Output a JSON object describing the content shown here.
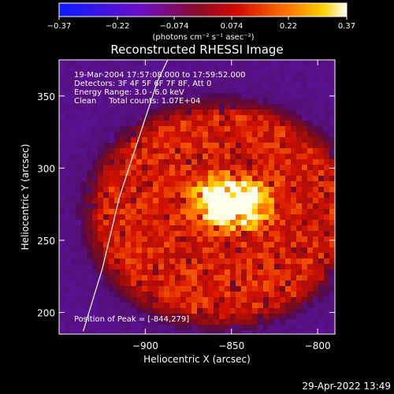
{
  "chart_data": {
    "type": "heatmap",
    "title": "Reconstructed RHESSI Image",
    "xlabel": "Heliocentric X (arcsec)",
    "ylabel": "Heliocentric Y (arcsec)",
    "xlim": [
      -950,
      -790
    ],
    "ylim": [
      185,
      375
    ],
    "xticks": [
      -900,
      -850,
      -800
    ],
    "xtick_labels": [
      "−900",
      "−850",
      "−800"
    ],
    "yticks": [
      200,
      250,
      300,
      350
    ],
    "ytick_labels": [
      "200",
      "250",
      "300",
      "350"
    ],
    "colorbar": {
      "range": [
        -0.37,
        0.37
      ],
      "ticks": [
        -0.37,
        -0.22,
        -0.074,
        0.074,
        0.22,
        0.37
      ],
      "tick_labels": [
        "−0.37",
        "−0.22",
        "−0.074",
        "0.074",
        "0.22",
        "0.37"
      ],
      "units_label": "(photons cm⁻² s⁻¹ asec⁻²)"
    },
    "annotations": [
      "19-Mar-2004 17:57:08.000 to 17:59:52.000",
      "Detectors: 3F 4F 5F 6F 7F 8F, Att 0",
      "Energy Range: 3.0 - 6.0 keV",
      "Clean     Total counts: 1.07E+04"
    ],
    "peak_label": "Position of Peak = [-844,279]",
    "peak": [
      -844,
      279
    ],
    "peak_value": 0.37,
    "blob_center": [
      -856,
      268
    ],
    "blob_radius": 83,
    "limb_curve": [
      [
        -936,
        187
      ],
      [
        -925,
        230
      ],
      [
        -915,
        280
      ],
      [
        -904,
        320
      ],
      [
        -893,
        360
      ],
      [
        -887,
        375
      ]
    ],
    "grid": false
  },
  "timestamp": "29-Apr-2022 13:49"
}
